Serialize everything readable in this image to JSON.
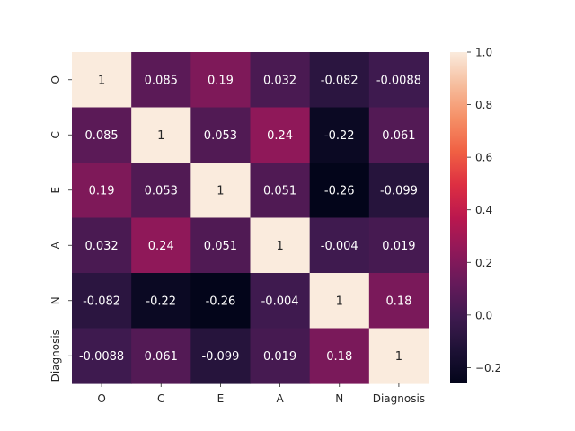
{
  "chart_data": {
    "type": "heatmap",
    "title": "",
    "xlabel": "",
    "ylabel": "",
    "x_categories": [
      "O",
      "C",
      "E",
      "A",
      "N",
      "Diagnosis"
    ],
    "y_categories": [
      "O",
      "C",
      "E",
      "A",
      "N",
      "Diagnosis"
    ],
    "values": [
      [
        1,
        0.085,
        0.19,
        0.032,
        -0.082,
        -0.0088
      ],
      [
        0.085,
        1,
        0.053,
        0.24,
        -0.22,
        0.061
      ],
      [
        0.19,
        0.053,
        1,
        0.051,
        -0.26,
        -0.099
      ],
      [
        0.032,
        0.24,
        0.051,
        1,
        -0.004,
        0.019
      ],
      [
        -0.082,
        -0.22,
        -0.26,
        -0.004,
        1,
        0.18
      ],
      [
        -0.0088,
        0.061,
        -0.099,
        0.019,
        0.18,
        1
      ]
    ],
    "annotations": [
      [
        "1",
        "0.085",
        "0.19",
        "0.032",
        "-0.082",
        "-0.0088"
      ],
      [
        "0.085",
        "1",
        "0.053",
        "0.24",
        "-0.22",
        "0.061"
      ],
      [
        "0.19",
        "0.053",
        "1",
        "0.051",
        "-0.26",
        "-0.099"
      ],
      [
        "0.032",
        "0.24",
        "0.051",
        "1",
        "-0.004",
        "0.019"
      ],
      [
        "-0.082",
        "-0.22",
        "-0.26",
        "-0.004",
        "1",
        "0.18"
      ],
      [
        "-0.0088",
        "0.061",
        "-0.099",
        "0.019",
        "0.18",
        "1"
      ]
    ],
    "colorbar": {
      "vmin": -0.26,
      "vmax": 1,
      "ticks": [
        -0.2,
        0.0,
        0.2,
        0.4,
        0.6,
        0.8,
        1.0
      ],
      "tick_labels": [
        "−0.2",
        "0.0",
        "0.2",
        "0.4",
        "0.6",
        "0.8",
        "1.0"
      ],
      "colormap": "rocket"
    },
    "grid": false,
    "legend": "colorbar-right"
  }
}
